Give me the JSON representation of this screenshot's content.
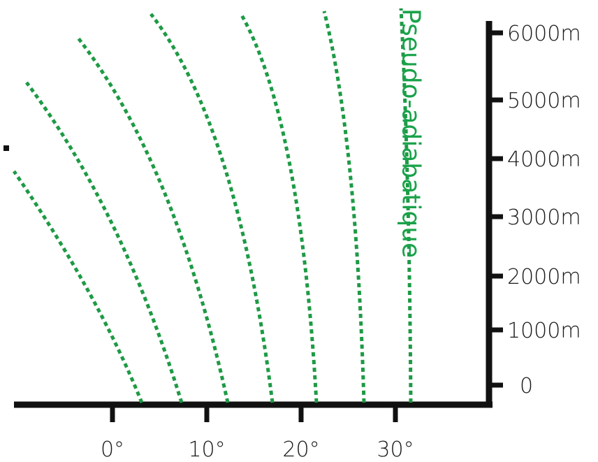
{
  "diagram": {
    "curve_label": "Pseudo-adiabatique",
    "curve_color": "#1e9a45",
    "axis_color": "#111111",
    "y_axis": {
      "ticks": [
        "6000m",
        "5000m",
        "4000m",
        "3000m",
        "2000m",
        "1000m",
        "0"
      ]
    },
    "x_axis": {
      "ticks": [
        "0°",
        "10°",
        "20°",
        "30°"
      ]
    },
    "curve_count": 7
  }
}
